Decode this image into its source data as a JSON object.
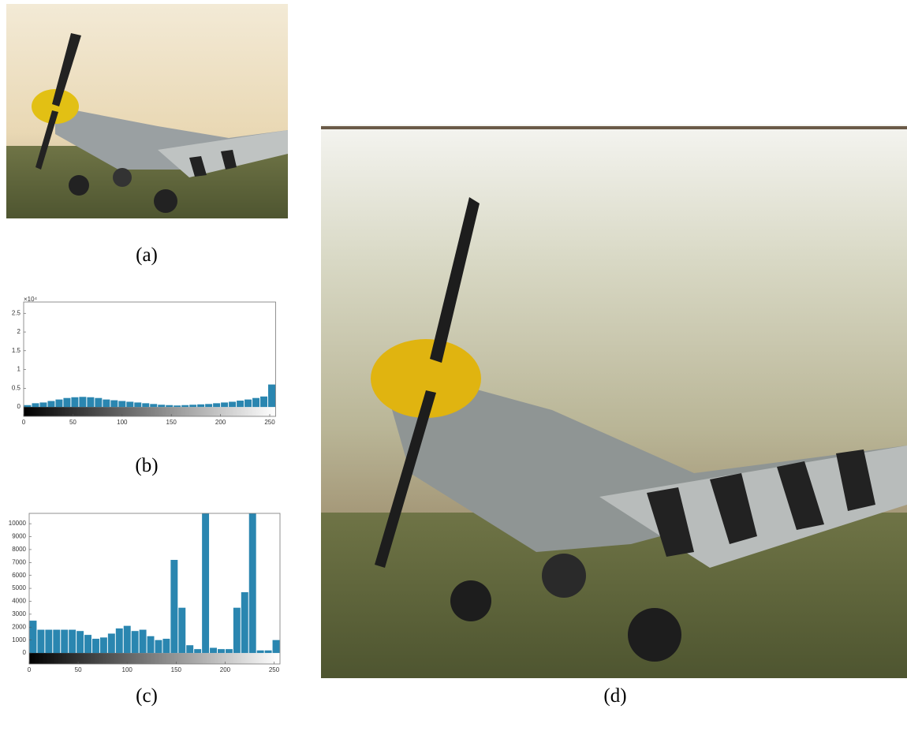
{
  "panel_labels": {
    "a": "(a)",
    "b": "(b)",
    "c": "(c)",
    "d": "(d)"
  },
  "chart_data": [
    {
      "type": "histogram",
      "y_exponent": "×10⁴",
      "color": "#2a86b0",
      "bins": [
        0,
        8,
        16,
        24,
        32,
        40,
        48,
        56,
        64,
        72,
        80,
        88,
        96,
        104,
        112,
        120,
        128,
        136,
        144,
        152,
        160,
        168,
        176,
        184,
        192,
        200,
        208,
        216,
        224,
        232,
        240,
        248,
        256
      ],
      "values": [
        0.05,
        0.1,
        0.12,
        0.16,
        0.2,
        0.24,
        0.26,
        0.27,
        0.26,
        0.24,
        0.2,
        0.18,
        0.16,
        0.14,
        0.12,
        0.1,
        0.08,
        0.06,
        0.05,
        0.04,
        0.05,
        0.06,
        0.07,
        0.08,
        0.1,
        0.12,
        0.14,
        0.17,
        0.2,
        0.24,
        0.28,
        0.6
      ],
      "xlim": [
        0,
        256
      ],
      "ylim": [
        -0.25,
        2.8
      ],
      "xticks": [
        0,
        50,
        100,
        150,
        200,
        250
      ],
      "yticks": [
        0,
        0.5,
        1,
        1.5,
        2,
        2.5
      ]
    },
    {
      "type": "histogram",
      "color": "#2a86b0",
      "bins": [
        0,
        8,
        16,
        24,
        32,
        40,
        48,
        56,
        64,
        72,
        80,
        88,
        96,
        104,
        112,
        120,
        128,
        136,
        144,
        152,
        160,
        168,
        176,
        184,
        192,
        200,
        208,
        216,
        224,
        232,
        240,
        248,
        256
      ],
      "values": [
        2500,
        1800,
        1800,
        1800,
        1800,
        1800,
        1700,
        1400,
        1100,
        1200,
        1500,
        1900,
        2100,
        1700,
        1800,
        1300,
        1000,
        1100,
        7200,
        3500,
        600,
        300,
        10800,
        400,
        300,
        300,
        3500,
        4700,
        10800,
        200,
        200,
        1000
      ],
      "xlim": [
        0,
        256
      ],
      "ylim": [
        -850,
        10800
      ],
      "xticks": [
        0,
        50,
        100,
        150,
        200,
        250
      ],
      "yticks": [
        0,
        1000,
        2000,
        3000,
        4000,
        5000,
        6000,
        7000,
        8000,
        9000,
        10000
      ]
    }
  ]
}
